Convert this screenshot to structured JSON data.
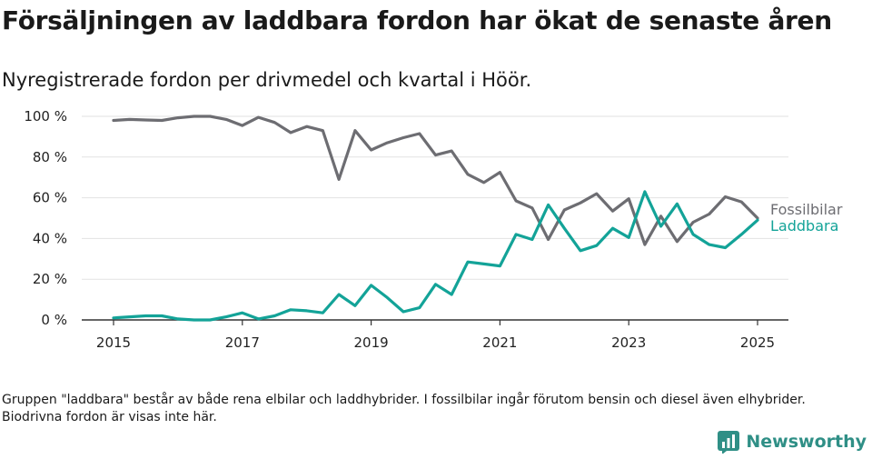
{
  "title": "Försäljningen av laddbara fordon har ökat de senaste åren",
  "subtitle": "Nyregistrerade fordon per drivmedel och kvartal i Höör.",
  "note": "Gruppen \"laddbara\" består av både rena elbilar och laddhybrider. I fossilbilar ingår förutom bensin och diesel även elhybrider. Biodrivna fordon är visas inte här.",
  "brand": {
    "name": "Newsworthy",
    "icon": "newsworthy-logo-icon",
    "color": "#2f8f86"
  },
  "chart_data": {
    "type": "line",
    "ylim": [
      0,
      100
    ],
    "yticks": [
      0,
      20,
      40,
      60,
      80,
      100
    ],
    "ytick_labels": [
      "0 %",
      "20 %",
      "40 %",
      "60 %",
      "80 %",
      "100 %"
    ],
    "xticks": [
      2015,
      2017,
      2019,
      2021,
      2023,
      2025
    ],
    "xtick_labels": [
      "2015",
      "2017",
      "2019",
      "2021",
      "2023",
      "2025"
    ],
    "xlim": [
      2014.7,
      2025.5
    ],
    "grid": true,
    "x": [
      2015.0,
      2015.25,
      2015.5,
      2015.75,
      2016.0,
      2016.25,
      2016.5,
      2016.75,
      2017.0,
      2017.25,
      2017.5,
      2017.75,
      2018.0,
      2018.25,
      2018.5,
      2018.75,
      2019.0,
      2019.25,
      2019.5,
      2019.75,
      2020.0,
      2020.25,
      2020.5,
      2020.75,
      2021.0,
      2021.25,
      2021.5,
      2021.75,
      2022.0,
      2022.25,
      2022.5,
      2022.75,
      2023.0,
      2023.25,
      2023.5,
      2023.75,
      2024.0,
      2024.25,
      2024.5,
      2024.75,
      2025.0
    ],
    "series": [
      {
        "name": "Fossilbilar",
        "color": "#6d6d72",
        "values": [
          98,
          98.5,
          98.2,
          98,
          99.3,
          100,
          100,
          98.5,
          95.5,
          99.5,
          97,
          92,
          95,
          93,
          69,
          93,
          83.5,
          87,
          89.5,
          91.5,
          81,
          83,
          71.5,
          67.5,
          72.5,
          58.5,
          55,
          39.5,
          54,
          57.5,
          62,
          53.5,
          59.5,
          37,
          51,
          38.5,
          48,
          52,
          60.5,
          58,
          50
        ]
      },
      {
        "name": "Laddbara",
        "color": "#13a398",
        "values": [
          1,
          1.5,
          2,
          2,
          0.5,
          0,
          0,
          1.5,
          3.5,
          0.5,
          2,
          5,
          4.5,
          3.5,
          12.5,
          7,
          17,
          11,
          4,
          6,
          17.5,
          12.5,
          28.5,
          27.5,
          26.5,
          42,
          39.5,
          56.5,
          45,
          34,
          36.5,
          45,
          40.5,
          63,
          46,
          57,
          42,
          37,
          35.5,
          42,
          49
        ]
      }
    ]
  }
}
